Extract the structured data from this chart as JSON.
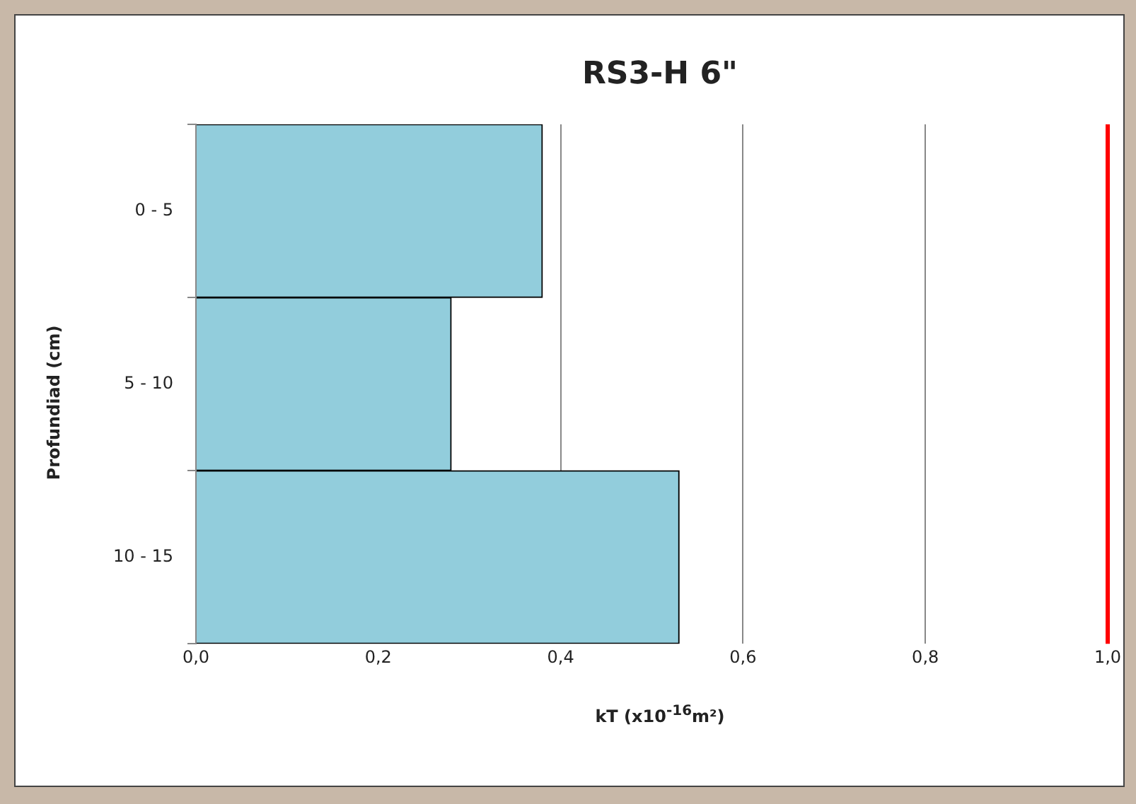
{
  "chart_data": {
    "type": "bar",
    "orientation": "horizontal",
    "title": "RS3-H 6\"",
    "xlabel": "kT (x10$^{-16}$m²)",
    "ylabel": "Profundiad (cm)",
    "categories": [
      "0 - 5",
      "5 - 10",
      "10 - 15"
    ],
    "values": [
      0.38,
      0.28,
      0.53
    ],
    "color": "#92cddc",
    "xlim": [
      0,
      1
    ],
    "xticks": [
      {
        "value": 0,
        "label": "0,0"
      },
      {
        "value": 0.2,
        "label": "0,2"
      },
      {
        "value": 0.4,
        "label": "0,4"
      },
      {
        "value": 0.6,
        "label": "0,6"
      },
      {
        "value": 0.8,
        "label": "0,8"
      },
      {
        "value": 1,
        "label": "1,0"
      }
    ],
    "grid": "x",
    "legend": false,
    "ref_lines": [
      {
        "axis": "x",
        "value": 1,
        "color": "#ff0000"
      }
    ]
  }
}
